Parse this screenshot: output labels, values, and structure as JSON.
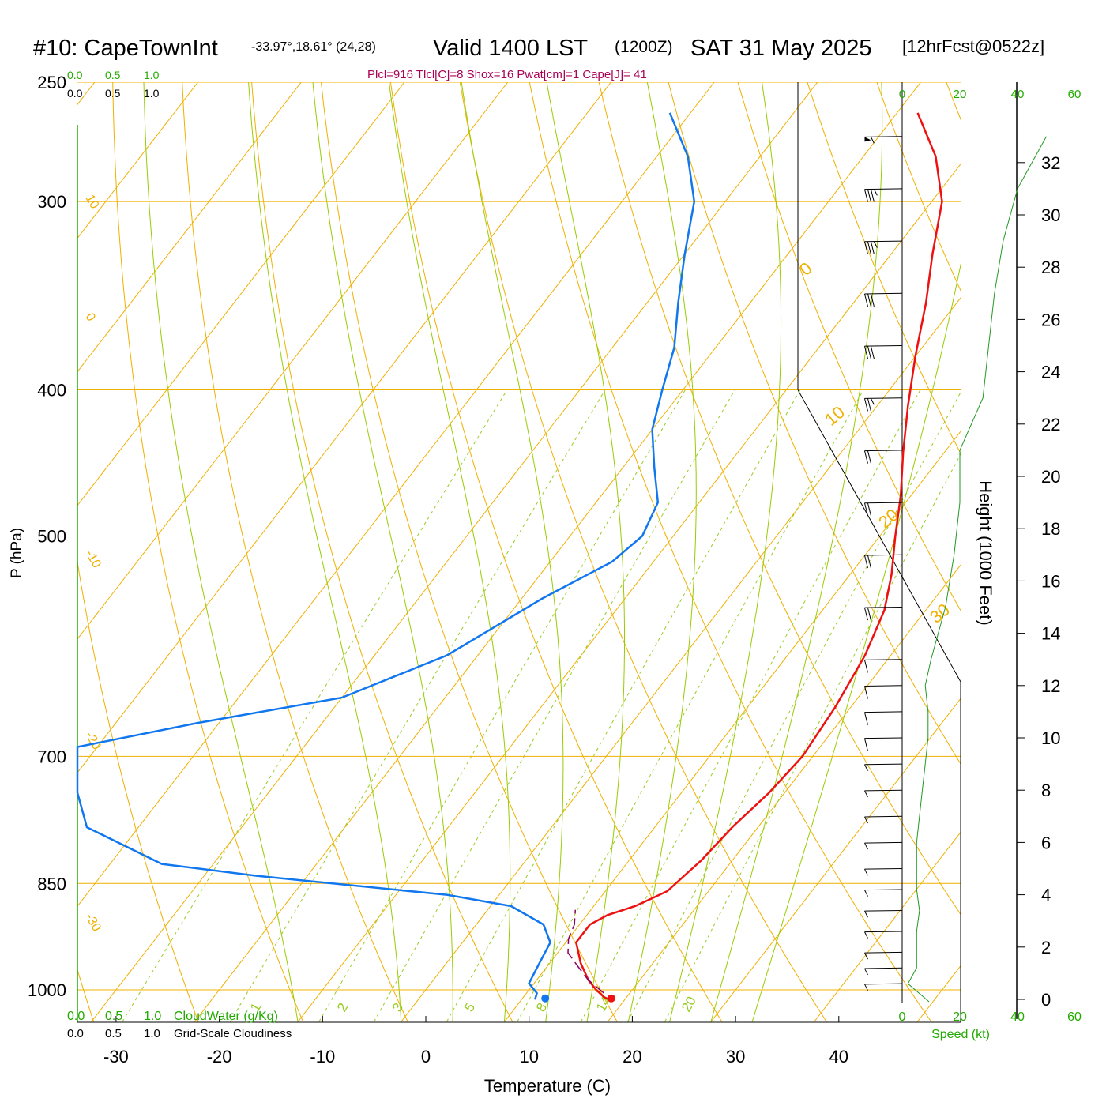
{
  "header": {
    "station": "#10: CapeTownInt",
    "coords": "-33.97°,18.61° (24,28)",
    "valid": "Valid 1400 LST",
    "zulu": "(1200Z)",
    "date": "SAT 31 May 2025",
    "forecast": "[12hrFcst@0522z]"
  },
  "indices": "Plcl=916 Tlcl[C]=8 Shox=16 Pwat[cm]=1 Cape[J]= 41",
  "colors": {
    "temperature": "#ee1111",
    "dewpoint": "#1177ee",
    "parcel": "#880066",
    "isobar_isotherm": "#f0b000",
    "dry_adiabat": "#f0b000",
    "moist_adiabat": "#99cc00",
    "mixing_ratio": "#99cc22",
    "green_text": "#22aa00",
    "indices_text": "#aa0055"
  },
  "top_cloud_scale": {
    "labels": [
      "0.0",
      "0.5",
      "1.0"
    ]
  },
  "bottom_cloud_scale": {
    "labels": [
      "0.0",
      "0.5",
      "1.0"
    ],
    "cloudwater_label": "CloudWater (g/Kg)",
    "cloudiness_label": "Grid-Scale Cloudiness"
  },
  "speed_axis": {
    "labels": [
      "0",
      "20",
      "40",
      "60"
    ],
    "title": "Speed (kt)"
  },
  "height_axis": {
    "title": "Height (1000 Feet)",
    "labels": [
      "0",
      "2",
      "4",
      "6",
      "8",
      "10",
      "12",
      "14",
      "16",
      "18",
      "20",
      "22",
      "24",
      "26",
      "28",
      "30",
      "32"
    ]
  },
  "chart_data": {
    "type": "line",
    "title": "#10: CapeTownInt Valid 1400 LST (1200Z) SAT 31 May 2025",
    "xlabel": "Temperature (C)",
    "ylabel": "P (hPa)",
    "x_ticks": [
      -30,
      -20,
      -10,
      0,
      10,
      20,
      30,
      40
    ],
    "y_ticks": [
      250,
      300,
      400,
      500,
      700,
      850,
      1000
    ],
    "pressure_range": [
      1050,
      250
    ],
    "skew_t": true,
    "log_pressure": true,
    "series": [
      {
        "name": "Temperature",
        "points": [
          [
            18.5,
            1015
          ],
          [
            17.8,
            1011
          ],
          [
            16.5,
            1000
          ],
          [
            15,
            985
          ],
          [
            13,
            960
          ],
          [
            11,
            930
          ],
          [
            11,
            905
          ],
          [
            12,
            892
          ],
          [
            14,
            880
          ],
          [
            15,
            870
          ],
          [
            16,
            860
          ],
          [
            17,
            820
          ],
          [
            17.5,
            780
          ],
          [
            18.5,
            740
          ],
          [
            19,
            700
          ],
          [
            18.5,
            650
          ],
          [
            17.5,
            600
          ],
          [
            16,
            560
          ],
          [
            14,
            530
          ],
          [
            11.5,
            500
          ],
          [
            9,
            470
          ],
          [
            6,
            440
          ],
          [
            3,
            410
          ],
          [
            0,
            380
          ],
          [
            -3,
            350
          ],
          [
            -6,
            325
          ],
          [
            -9,
            300
          ],
          [
            -13,
            280
          ],
          [
            -18,
            262
          ]
        ]
      },
      {
        "name": "Dewpoint",
        "points": [
          [
            11.3,
            1015
          ],
          [
            11,
            1005
          ],
          [
            9.5,
            990
          ],
          [
            9,
            960
          ],
          [
            8.5,
            930
          ],
          [
            6.5,
            905
          ],
          [
            2,
            880
          ],
          [
            -5,
            865
          ],
          [
            -25,
            840
          ],
          [
            -35,
            825
          ],
          [
            -45,
            780
          ],
          [
            -53,
            740
          ],
          [
            -65,
            700
          ],
          [
            -58,
            690
          ],
          [
            -42,
            665
          ],
          [
            -30,
            640
          ],
          [
            -23,
            600
          ],
          [
            -18,
            550
          ],
          [
            -14,
            520
          ],
          [
            -13,
            500
          ],
          [
            -14,
            475
          ],
          [
            -17,
            450
          ],
          [
            -20,
            425
          ],
          [
            -22,
            400
          ],
          [
            -24,
            375
          ],
          [
            -27,
            350
          ],
          [
            -30,
            325
          ],
          [
            -33,
            300
          ],
          [
            -37,
            280
          ],
          [
            -42,
            262
          ]
        ]
      },
      {
        "name": "Parcel",
        "points": [
          [
            17.5,
            1005
          ],
          [
            15,
            985
          ],
          [
            13,
            965
          ],
          [
            11,
            945
          ],
          [
            10,
            925
          ],
          [
            9.5,
            905
          ],
          [
            8.5,
            885
          ]
        ]
      }
    ],
    "surface_points": {
      "temperature": [
        18.6,
        1013
      ],
      "dewpoint": [
        12.2,
        1013
      ]
    },
    "isotherm_labels": [
      10,
      0,
      -10,
      -20,
      -30
    ],
    "isotherm_labels_right": [
      0,
      10,
      20,
      30
    ],
    "mixing_ratio_labels": [
      "1",
      "2",
      "3",
      "5",
      "8",
      "14",
      "20"
    ],
    "wind_profile": {
      "height_kft": [
        0.6,
        1.2,
        1.8,
        2.6,
        3.4,
        4.2,
        5,
        6,
        7,
        8,
        9,
        10,
        11,
        12,
        13,
        15,
        17,
        19,
        21,
        23,
        25,
        27,
        29,
        31,
        33
      ],
      "speed_kt": [
        2,
        5,
        5,
        5,
        6,
        5,
        5,
        5,
        6,
        7,
        8,
        9,
        9,
        8,
        10,
        15,
        18,
        20,
        20,
        28,
        30,
        32,
        35,
        40,
        50
      ],
      "barbs_kt": [
        5,
        5,
        5,
        5,
        5,
        5,
        5,
        5,
        5,
        5,
        5,
        10,
        10,
        10,
        10,
        20,
        20,
        20,
        20,
        25,
        30,
        30,
        35,
        35,
        55
      ]
    }
  }
}
